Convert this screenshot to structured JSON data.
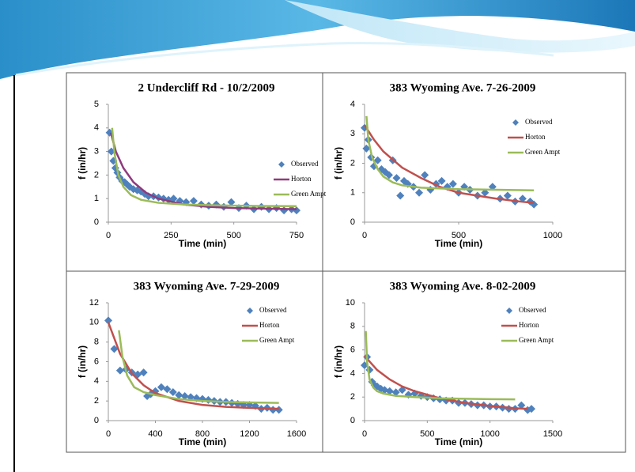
{
  "chart_data": [
    {
      "type": "scatter",
      "title": "2 Undercliff Rd - 10/2/2009",
      "x_label": "Time (min)",
      "y_label": "f (in/hr)",
      "xlim": [
        0,
        750
      ],
      "ylim": [
        0,
        5
      ],
      "xticks": [
        0,
        250,
        500,
        750
      ],
      "yticks": [
        0,
        1,
        2,
        3,
        4,
        5
      ],
      "series": [
        {
          "name": "Observed",
          "color": "#4F81BD",
          "mode": "markers",
          "x": [
            5,
            12,
            20,
            28,
            36,
            45,
            55,
            65,
            75,
            85,
            100,
            115,
            130,
            145,
            160,
            180,
            200,
            220,
            240,
            260,
            285,
            310,
            340,
            370,
            400,
            430,
            460,
            490,
            520,
            550,
            580,
            610,
            640,
            670,
            700,
            730,
            750
          ],
          "values": [
            3.8,
            3.0,
            2.6,
            2.3,
            2.1,
            1.9,
            1.75,
            1.7,
            1.6,
            1.5,
            1.4,
            1.35,
            1.3,
            1.2,
            1.1,
            1.1,
            1.05,
            1.0,
            0.95,
            1.0,
            0.9,
            0.85,
            0.9,
            0.75,
            0.7,
            0.75,
            0.65,
            0.85,
            0.6,
            0.7,
            0.55,
            0.65,
            0.55,
            0.6,
            0.5,
            0.55,
            0.5
          ]
        },
        {
          "name": "Horton",
          "color": "#8E3B7E",
          "mode": "lines",
          "x": [
            10,
            30,
            60,
            100,
            150,
            200,
            300,
            400,
            500,
            600,
            750
          ],
          "values": [
            3.8,
            3.0,
            2.3,
            1.7,
            1.25,
            1.0,
            0.75,
            0.65,
            0.6,
            0.58,
            0.55
          ]
        },
        {
          "name": "Green Ampt",
          "color": "#9BBB59",
          "mode": "lines",
          "x": [
            15,
            25,
            40,
            60,
            90,
            130,
            200,
            300,
            450,
            600,
            750
          ],
          "values": [
            4.0,
            2.9,
            2.0,
            1.5,
            1.15,
            0.95,
            0.82,
            0.75,
            0.71,
            0.69,
            0.68
          ]
        }
      ]
    },
    {
      "type": "scatter",
      "title": "383 Wyoming Ave. 7-26-2009",
      "x_label": "Time (min)",
      "y_label": "f (in/hr)",
      "xlim": [
        0,
        1000
      ],
      "ylim": [
        0,
        4
      ],
      "xticks": [
        0,
        500,
        1000
      ],
      "yticks": [
        0,
        1,
        2,
        3,
        4
      ],
      "series": [
        {
          "name": "Observed",
          "color": "#4F81BD",
          "mode": "markers",
          "x": [
            0,
            10,
            20,
            35,
            50,
            70,
            90,
            110,
            130,
            150,
            170,
            190,
            210,
            230,
            260,
            290,
            320,
            350,
            380,
            410,
            440,
            470,
            500,
            530,
            560,
            600,
            640,
            680,
            720,
            760,
            800,
            840,
            880,
            900
          ],
          "values": [
            3.2,
            2.5,
            2.8,
            2.2,
            1.9,
            2.1,
            1.8,
            1.7,
            1.6,
            2.1,
            1.5,
            0.9,
            1.4,
            1.3,
            1.2,
            1.0,
            1.6,
            1.1,
            1.3,
            1.4,
            1.2,
            1.3,
            1.0,
            1.2,
            1.1,
            0.9,
            1.0,
            1.2,
            0.8,
            0.9,
            0.7,
            0.8,
            0.7,
            0.6
          ]
        },
        {
          "name": "Horton",
          "color": "#C0504D",
          "mode": "lines",
          "x": [
            0,
            50,
            100,
            200,
            300,
            400,
            500,
            600,
            700,
            800,
            900
          ],
          "values": [
            3.3,
            2.8,
            2.4,
            1.85,
            1.5,
            1.2,
            1.0,
            0.9,
            0.8,
            0.72,
            0.65
          ]
        },
        {
          "name": "Green Ampt",
          "color": "#9BBB59",
          "mode": "lines",
          "x": [
            10,
            20,
            40,
            70,
            100,
            150,
            200,
            300,
            500,
            700,
            900
          ],
          "values": [
            3.6,
            2.8,
            2.2,
            1.8,
            1.55,
            1.35,
            1.25,
            1.17,
            1.12,
            1.1,
            1.08
          ]
        }
      ]
    },
    {
      "type": "scatter",
      "title": "383 Wyoming Ave. 7-29-2009",
      "x_label": "Time (min)",
      "y_label": "f (in/hr)",
      "xlim": [
        0,
        1600
      ],
      "ylim": [
        0,
        12
      ],
      "xticks": [
        0,
        400,
        800,
        1200,
        1600
      ],
      "yticks": [
        0,
        2,
        4,
        6,
        8,
        10,
        12
      ],
      "series": [
        {
          "name": "Observed",
          "color": "#4F81BD",
          "mode": "markers",
          "x": [
            0,
            50,
            100,
            150,
            200,
            250,
            300,
            330,
            360,
            400,
            450,
            500,
            550,
            600,
            650,
            700,
            750,
            800,
            850,
            900,
            950,
            1000,
            1050,
            1100,
            1150,
            1200,
            1250,
            1300,
            1350,
            1400,
            1450
          ],
          "values": [
            10.2,
            7.3,
            5.1,
            5.2,
            4.9,
            4.7,
            4.9,
            2.5,
            2.7,
            3.0,
            3.4,
            3.2,
            2.9,
            2.6,
            2.5,
            2.4,
            2.3,
            2.2,
            2.1,
            2.0,
            1.9,
            1.9,
            1.8,
            1.7,
            1.6,
            1.6,
            1.5,
            1.2,
            1.3,
            1.1,
            1.1
          ]
        },
        {
          "name": "Horton",
          "color": "#C0504D",
          "mode": "lines",
          "x": [
            0,
            100,
            200,
            300,
            400,
            600,
            800,
            1000,
            1200,
            1450
          ],
          "values": [
            10,
            6.8,
            4.8,
            3.6,
            2.8,
            2.0,
            1.6,
            1.4,
            1.3,
            1.2
          ]
        },
        {
          "name": "Green Ampt",
          "color": "#9BBB59",
          "mode": "lines",
          "x": [
            90,
            120,
            160,
            220,
            300,
            400,
            600,
            800,
            1000,
            1200,
            1450
          ],
          "values": [
            9.2,
            6.5,
            4.6,
            3.4,
            2.9,
            2.6,
            2.2,
            2.0,
            1.9,
            1.85,
            1.8
          ]
        }
      ]
    },
    {
      "type": "scatter",
      "title": "383 Wyoming Ave. 8-02-2009",
      "x_label": "Time (min)",
      "y_label": "f (in/hr)",
      "xlim": [
        0,
        1500
      ],
      "ylim": [
        0,
        10
      ],
      "xticks": [
        0,
        500,
        1000,
        1500
      ],
      "yticks": [
        0,
        2,
        4,
        6,
        8,
        10
      ],
      "series": [
        {
          "name": "Observed",
          "color": "#4F81BD",
          "mode": "markers",
          "x": [
            0,
            20,
            40,
            60,
            80,
            100,
            130,
            160,
            200,
            250,
            300,
            350,
            400,
            450,
            500,
            550,
            600,
            650,
            700,
            750,
            800,
            850,
            900,
            950,
            1000,
            1050,
            1100,
            1150,
            1200,
            1250,
            1300,
            1330
          ],
          "values": [
            4.7,
            5.4,
            4.3,
            3.3,
            3.0,
            2.9,
            2.7,
            2.6,
            2.5,
            2.4,
            2.6,
            2.2,
            2.3,
            2.1,
            2.0,
            1.9,
            1.8,
            1.7,
            1.7,
            1.5,
            1.5,
            1.4,
            1.3,
            1.3,
            1.2,
            1.2,
            1.1,
            1.0,
            1.0,
            1.3,
            0.9,
            1.0
          ]
        },
        {
          "name": "Horton",
          "color": "#C0504D",
          "mode": "lines",
          "x": [
            0,
            100,
            200,
            300,
            400,
            600,
            800,
            1000,
            1200,
            1300
          ],
          "values": [
            5.5,
            4.3,
            3.5,
            2.9,
            2.5,
            1.9,
            1.5,
            1.25,
            1.05,
            1.0
          ]
        },
        {
          "name": "Green Ampt",
          "color": "#9BBB59",
          "mode": "lines",
          "x": [
            10,
            20,
            40,
            70,
            100,
            150,
            250,
            400,
            600,
            800,
            1000,
            1200
          ],
          "values": [
            7.6,
            5.0,
            3.5,
            2.8,
            2.5,
            2.3,
            2.1,
            2.0,
            1.9,
            1.85,
            1.82,
            1.8
          ]
        }
      ]
    }
  ]
}
